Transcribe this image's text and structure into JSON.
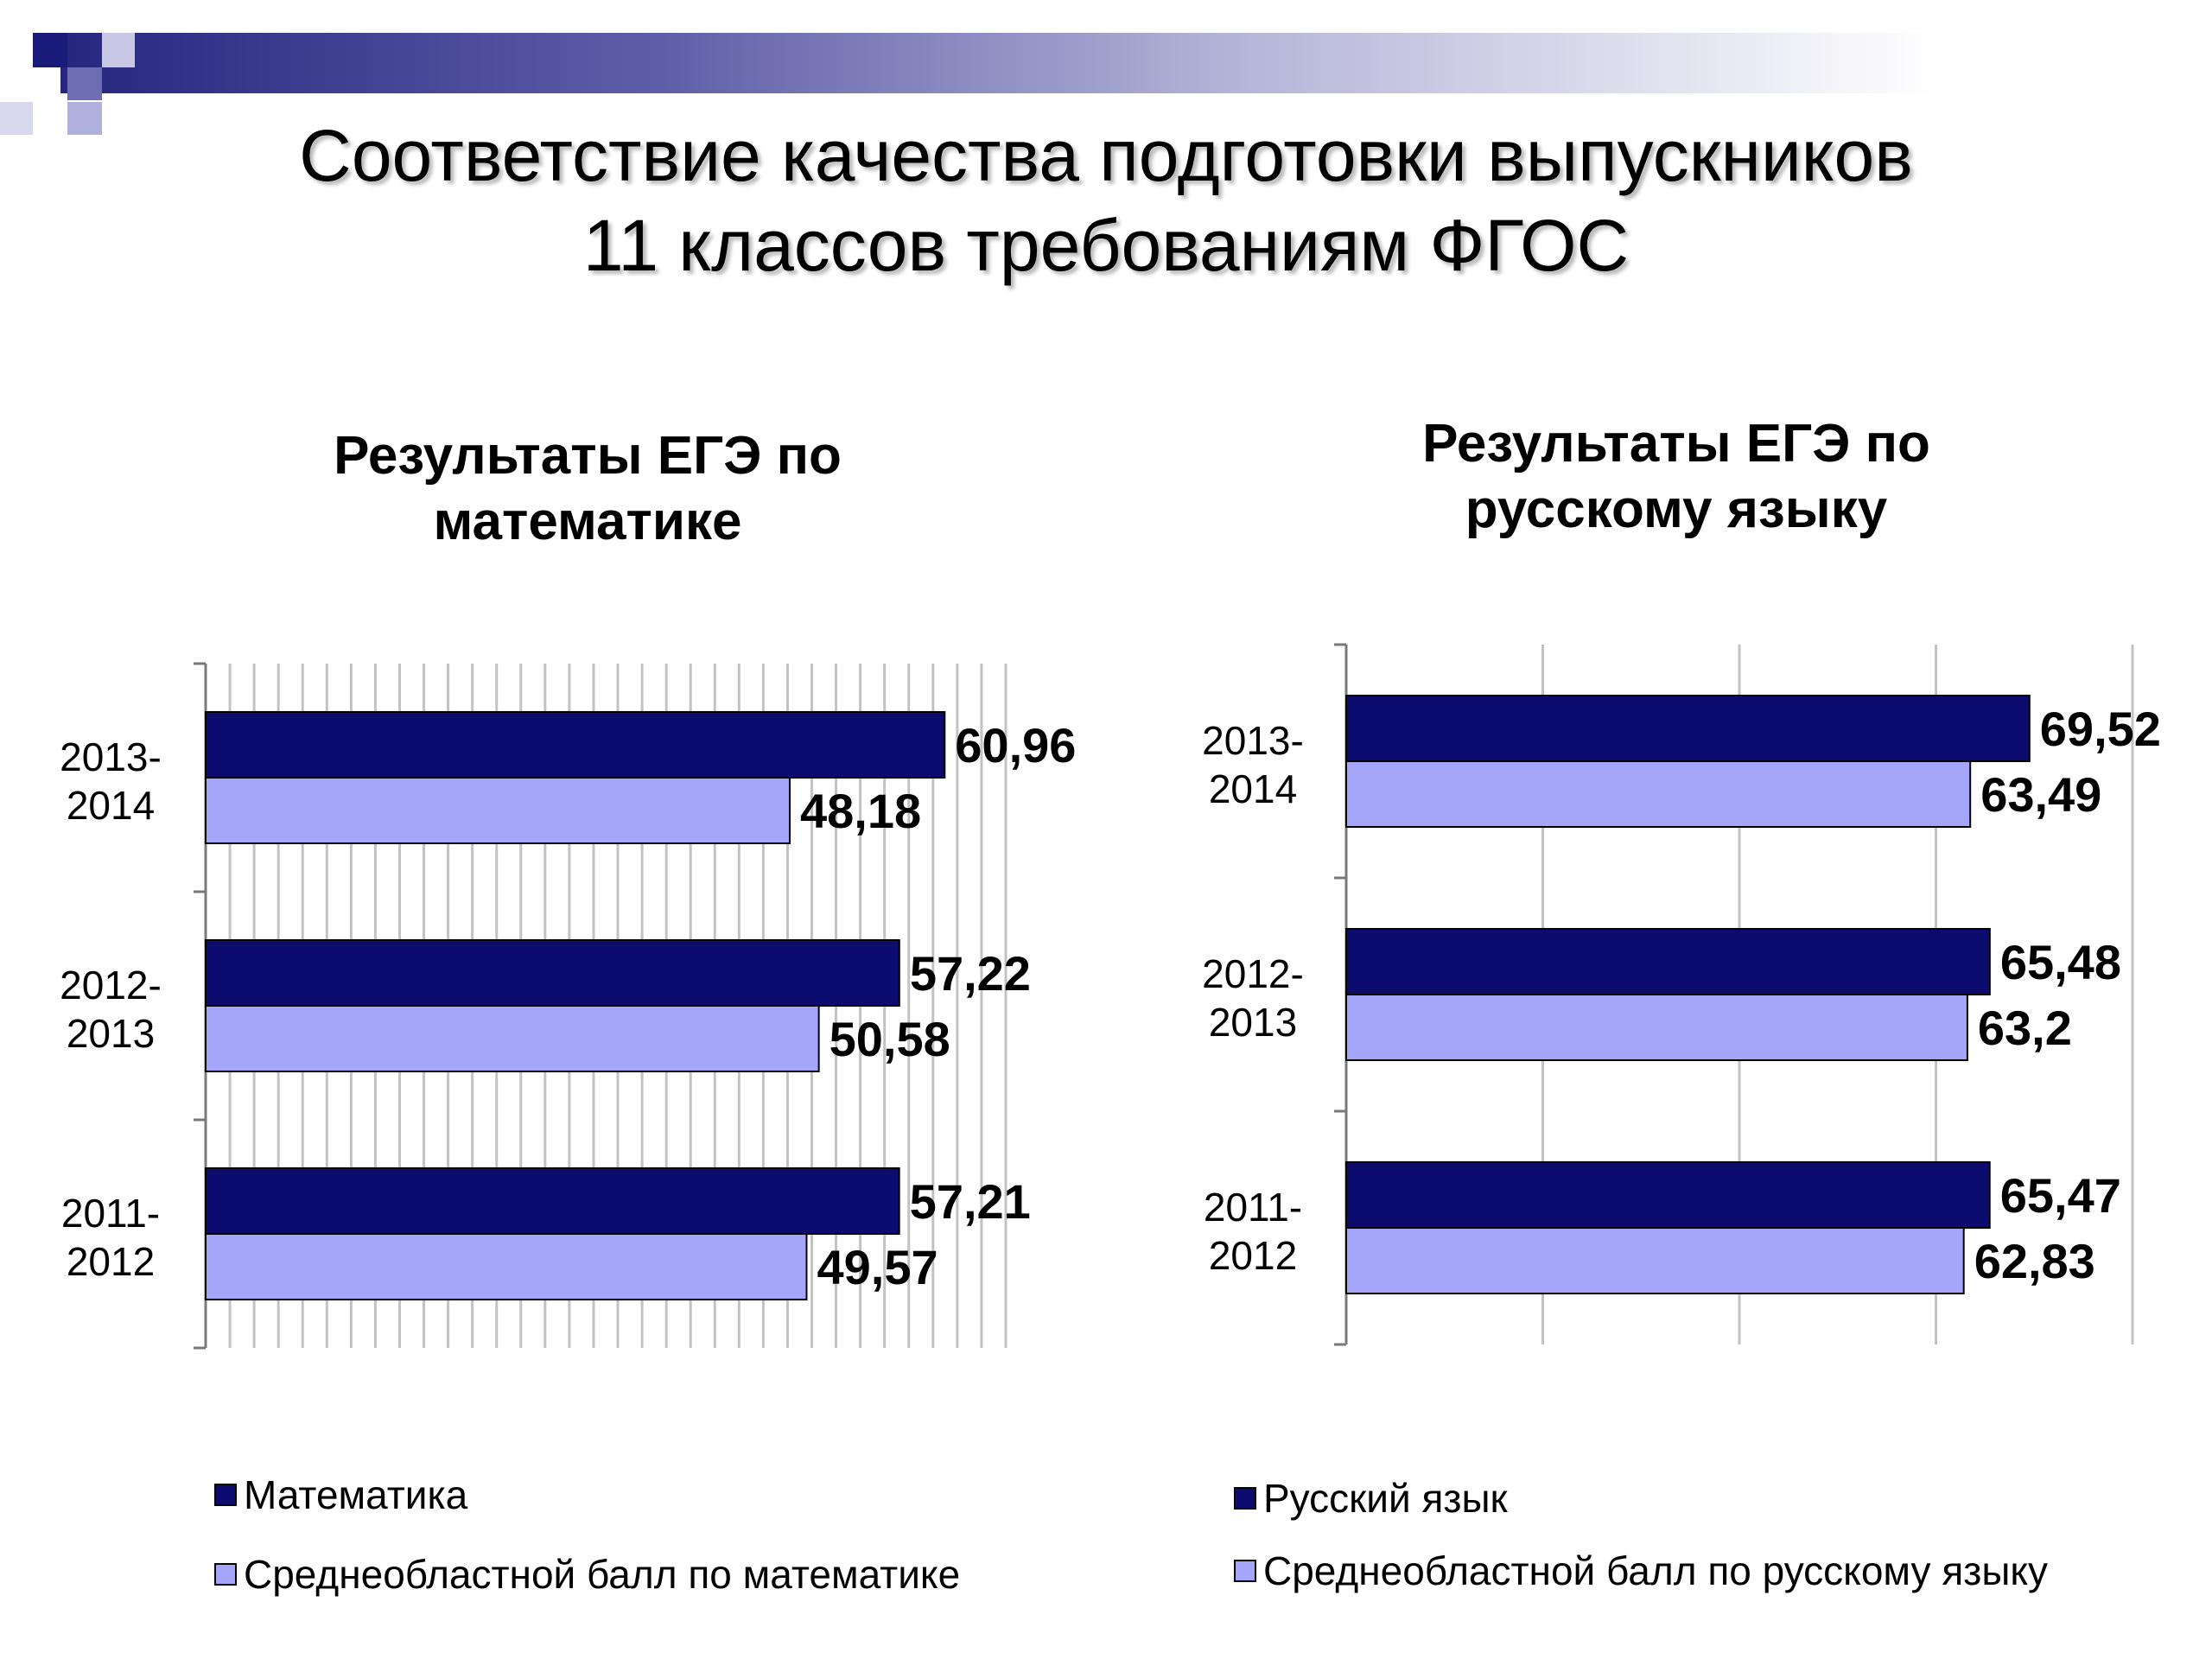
{
  "slide": {
    "title_line1": "Соответствие качества подготовки выпускников",
    "title_line2": "11 классов требованиям ФГОС"
  },
  "colors": {
    "dark": "#0c0c6e",
    "light": "#a5a5fa",
    "decor": "#2b2b8c"
  },
  "chart_data": [
    {
      "type": "bar",
      "orientation": "horizontal",
      "title_line1": "Результаты ЕГЭ по",
      "title_line2": "математике",
      "categories": [
        {
          "line1": "2013-",
          "line2": "2014"
        },
        {
          "line1": "2012-",
          "line2": "2013"
        },
        {
          "line1": "2011-",
          "line2": "2012"
        }
      ],
      "series": [
        {
          "name": "Математика",
          "values": [
            60.96,
            57.22,
            57.21
          ],
          "labels": [
            "60,96",
            "57,22",
            "57,21"
          ]
        },
        {
          "name": "Среднеобластной балл по математике",
          "values": [
            48.18,
            50.58,
            49.57
          ],
          "labels": [
            "48,18",
            "50,58",
            "49,57"
          ]
        }
      ],
      "xlim": [
        0,
        66
      ],
      "grid": true,
      "legend_position": "bottom"
    },
    {
      "type": "bar",
      "orientation": "horizontal",
      "title_line1": "Результаты ЕГЭ по",
      "title_line2": "русскому языку",
      "categories": [
        {
          "line1": "2013-",
          "line2": "2014"
        },
        {
          "line1": "2012-",
          "line2": "2013"
        },
        {
          "line1": "2011-",
          "line2": "2012"
        }
      ],
      "series": [
        {
          "name": "Русский язык",
          "values": [
            69.52,
            65.48,
            65.47
          ],
          "labels": [
            "69,52",
            "65,48",
            "65,47"
          ]
        },
        {
          "name": "Среднеобластной балл по русскому языку",
          "values": [
            63.49,
            63.2,
            62.83
          ],
          "labels": [
            "63,49",
            "63,2",
            "62,83"
          ]
        }
      ],
      "xlim": [
        0,
        80
      ],
      "grid": true,
      "legend_position": "bottom"
    }
  ]
}
